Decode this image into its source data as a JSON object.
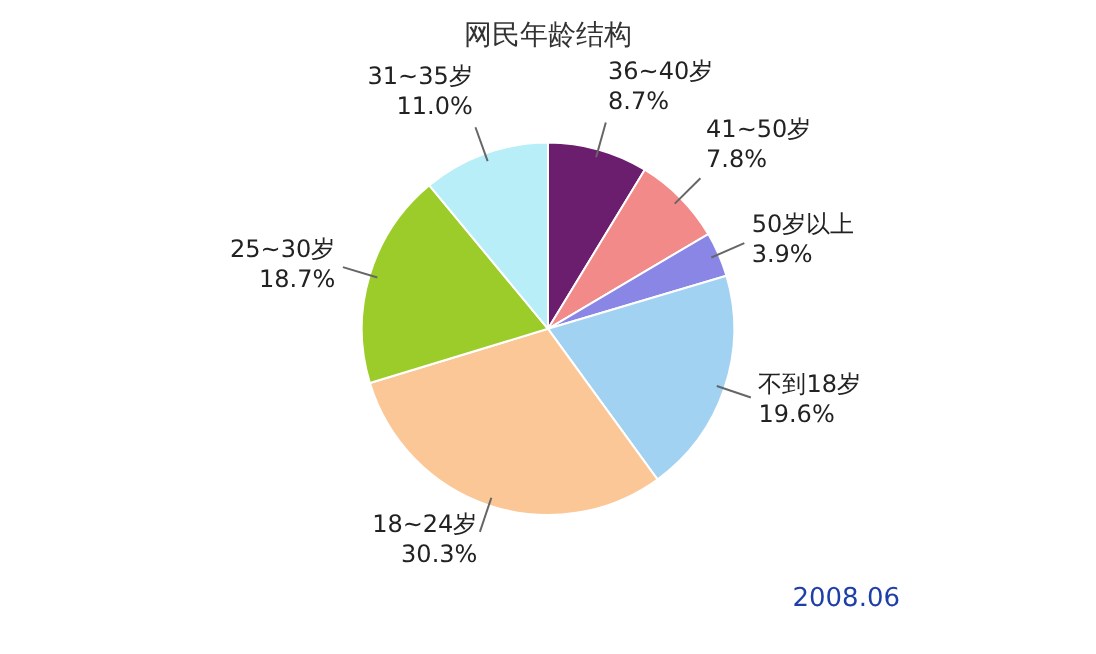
{
  "chart_data": {
    "type": "pie",
    "title": "网民年龄结构",
    "categories": [
      "36~40岁",
      "41~50岁",
      "50岁以上",
      "不到18岁",
      "18~24岁",
      "25~30岁",
      "31~35岁"
    ],
    "values": [
      8.7,
      7.8,
      3.9,
      19.6,
      30.3,
      18.7,
      11.0
    ],
    "value_labels": [
      "8.7%",
      "7.8%",
      "3.9%",
      "19.6%",
      "30.3%",
      "18.7%",
      "11.0%"
    ],
    "colors": [
      "#6b1d6e",
      "#f28a8a",
      "#8a86e6",
      "#a2d2f2",
      "#fcc796",
      "#9ccc2a",
      "#b8eef7"
    ],
    "legend": false,
    "annotations": [
      "2008.06"
    ]
  }
}
